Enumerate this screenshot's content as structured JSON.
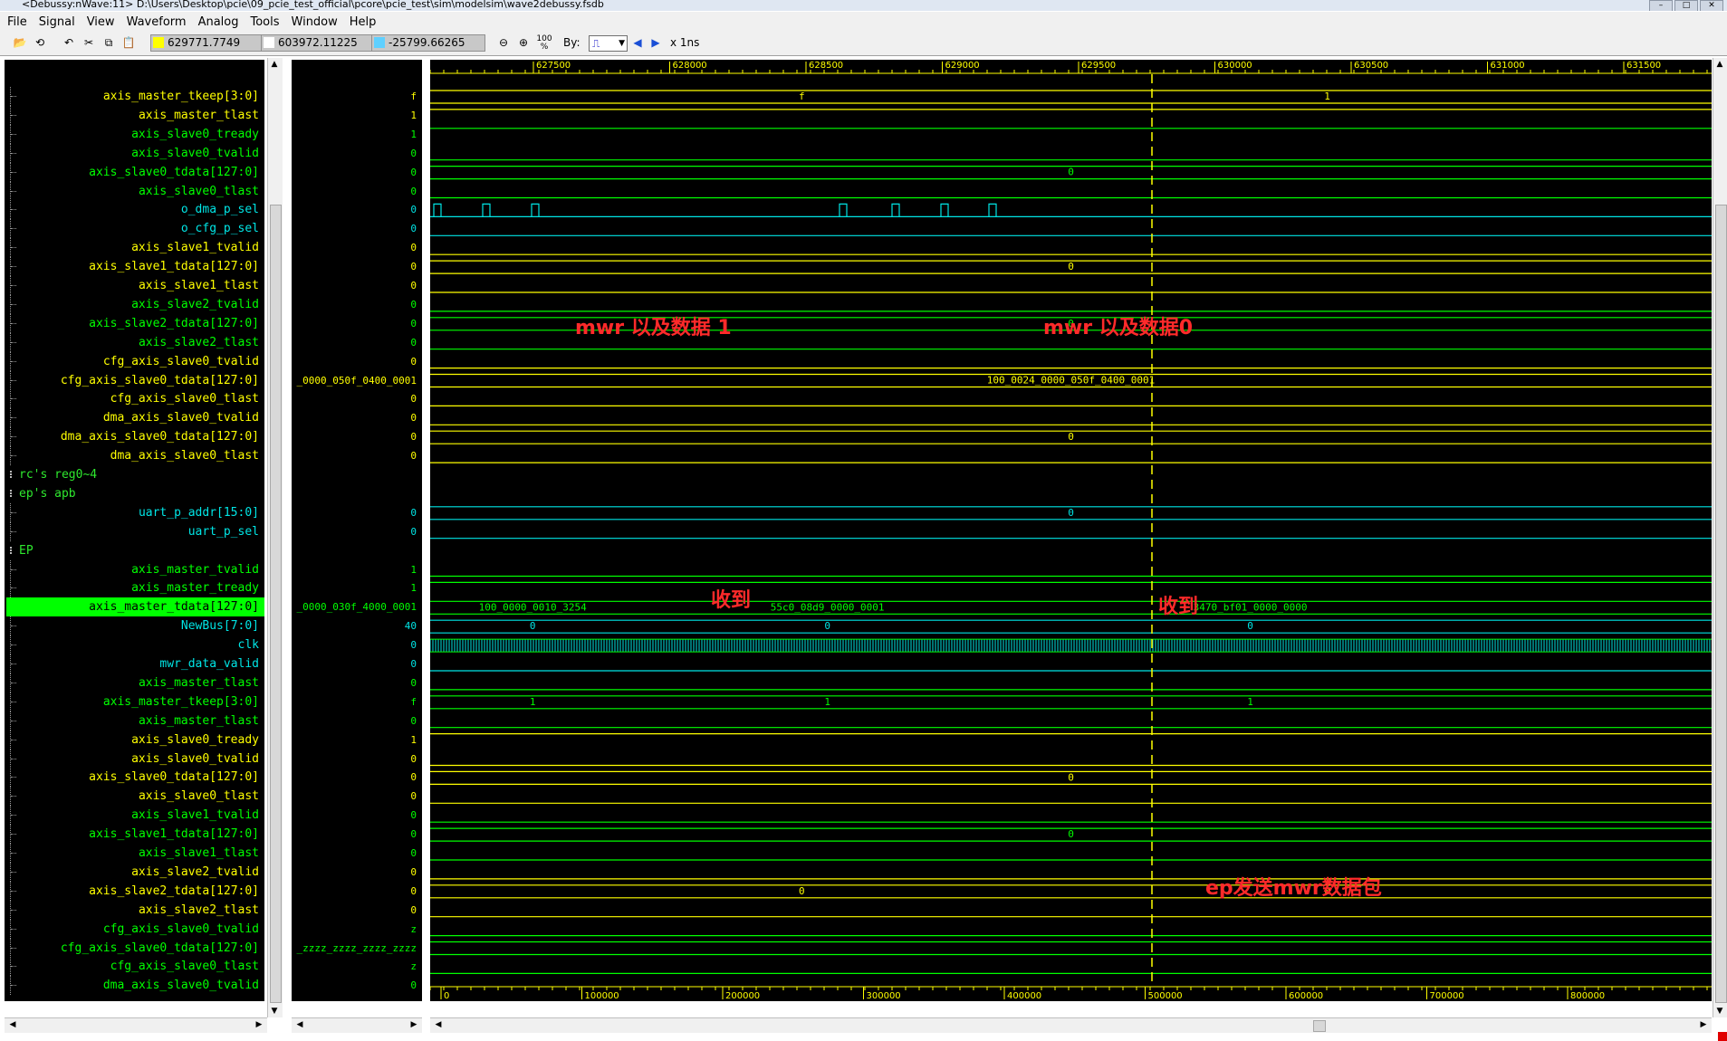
{
  "window": {
    "title": "<Debussy:nWave:11> D:\\Users\\Desktop\\pcie\\09_pcie_test_official\\pcore\\pcie_test\\sim\\modelsim\\wave2debussy.fsdb"
  },
  "menu": [
    "File",
    "Signal",
    "View",
    "Waveform",
    "Analog",
    "Tools",
    "Window",
    "Help"
  ],
  "toolbar": {
    "cursor_time": "629771.7749",
    "marker_time": "603972.11225",
    "delta_time": "-25799.66265",
    "zoom_full_label": "100 %",
    "by_label": "By:",
    "time_unit": "x 1ns"
  },
  "colors": {
    "yellow": "#ffff00",
    "green": "#00ff00",
    "cyan": "#00e5e5",
    "selected_bg": "#00ff00",
    "annotation": "#ff2a2a",
    "cursor": "#ffff00"
  },
  "timeline": {
    "top_ticks": [
      "627500",
      "628000",
      "628500",
      "629000",
      "629500",
      "630000",
      "630500",
      "631000",
      "631500"
    ],
    "bottom_ticks": [
      "0",
      "100000",
      "200000",
      "300000",
      "400000",
      "500000",
      "600000",
      "700000",
      "800000"
    ]
  },
  "rows": [
    {
      "name": "axis_master_tkeep[3:0]",
      "color": "yellow",
      "value": "f",
      "wave": "bus",
      "label": "f",
      "label2": "1"
    },
    {
      "name": "axis_master_tlast",
      "color": "yellow",
      "value": "1",
      "wave": "bit_high"
    },
    {
      "name": "axis_slave0_tready",
      "color": "green",
      "value": "1",
      "wave": "bit_high_g"
    },
    {
      "name": "axis_slave0_tvalid",
      "color": "green",
      "value": "0",
      "wave": "bit_low"
    },
    {
      "name": "axis_slave0_tdata[127:0]",
      "color": "green",
      "value": "0",
      "wave": "bus",
      "label": "0"
    },
    {
      "name": "axis_slave0_tlast",
      "color": "green",
      "value": "0",
      "wave": "bit_low"
    },
    {
      "name": "o_dma_p_sel",
      "color": "cyan",
      "value": "0",
      "wave": "pulses"
    },
    {
      "name": "o_cfg_p_sel",
      "color": "cyan",
      "value": "0",
      "wave": "bit_low"
    },
    {
      "name": "axis_slave1_tvalid",
      "color": "yellow",
      "value": "0",
      "wave": "bit_low"
    },
    {
      "name": "axis_slave1_tdata[127:0]",
      "color": "yellow",
      "value": "0",
      "wave": "bus",
      "label": "0"
    },
    {
      "name": "axis_slave1_tlast",
      "color": "yellow",
      "value": "0",
      "wave": "bit_low"
    },
    {
      "name": "axis_slave2_tvalid",
      "color": "green",
      "value": "0",
      "wave": "bit_low"
    },
    {
      "name": "axis_slave2_tdata[127:0]",
      "color": "green",
      "value": "0",
      "wave": "bus",
      "label": "0"
    },
    {
      "name": "axis_slave2_tlast",
      "color": "green",
      "value": "0",
      "wave": "bit_low"
    },
    {
      "name": "cfg_axis_slave0_tvalid",
      "color": "yellow",
      "value": "0",
      "wave": "bit_low"
    },
    {
      "name": "cfg_axis_slave0_tdata[127:0]",
      "color": "yellow",
      "value": "_0000_050f_0400_0001",
      "wave": "bus",
      "label": "100_0024_0000_050f_0400_0001"
    },
    {
      "name": "cfg_axis_slave0_tlast",
      "color": "yellow",
      "value": "0",
      "wave": "bit_low"
    },
    {
      "name": "dma_axis_slave0_tvalid",
      "color": "yellow",
      "value": "0",
      "wave": "bit_low"
    },
    {
      "name": "dma_axis_slave0_tdata[127:0]",
      "color": "yellow",
      "value": "0",
      "wave": "bus",
      "label": "0"
    },
    {
      "name": "dma_axis_slave0_tlast",
      "color": "yellow",
      "value": "0",
      "wave": "bit_low"
    },
    {
      "group": "rc's reg0~4"
    },
    {
      "group": "ep's apb"
    },
    {
      "name": "uart_p_addr[15:0]",
      "color": "cyan",
      "value": "0",
      "wave": "bus",
      "label": "0"
    },
    {
      "name": "uart_p_sel",
      "color": "cyan",
      "value": "0",
      "wave": "bit_low"
    },
    {
      "group": "EP"
    },
    {
      "name": "axis_master_tvalid",
      "color": "green",
      "value": "1",
      "wave": "bit_low"
    },
    {
      "name": "axis_master_tready",
      "color": "green",
      "value": "1",
      "wave": "bit_high_g"
    },
    {
      "name": "axis_master_tdata[127:0]",
      "color": "green",
      "value": "_0000_030f_4000_0001",
      "selected": true,
      "wave": "bus",
      "label": "100_0000_0010_3254",
      "label2": "55c0_08d9_0000_0001",
      "label3": "3470_bf01_0000_0000"
    },
    {
      "name": "NewBus[7:0]",
      "color": "cyan",
      "value": "40",
      "wave": "bus",
      "label": "0",
      "label2": "0",
      "label3": "0"
    },
    {
      "name": "clk",
      "color": "cyan",
      "value": "0",
      "wave": "clock"
    },
    {
      "name": "mwr_data_valid",
      "color": "cyan",
      "value": "0",
      "wave": "bit_low"
    },
    {
      "name": "axis_master_tlast",
      "color": "green",
      "value": "0",
      "wave": "bit_low"
    },
    {
      "name": "axis_master_tkeep[3:0]",
      "color": "green",
      "value": "f",
      "wave": "bus",
      "label": "1",
      "label2": "1",
      "label3": "1"
    },
    {
      "name": "axis_master_tlast",
      "color": "green",
      "value": "0",
      "wave": "bit_low"
    },
    {
      "name": "axis_slave0_tready",
      "color": "yellow",
      "value": "1",
      "wave": "bit_high"
    },
    {
      "name": "axis_slave0_tvalid",
      "color": "yellow",
      "value": "0",
      "wave": "bit_low"
    },
    {
      "name": "axis_slave0_tdata[127:0]",
      "color": "yellow",
      "value": "0",
      "wave": "bus",
      "label": "0"
    },
    {
      "name": "axis_slave0_tlast",
      "color": "yellow",
      "value": "0",
      "wave": "bit_low"
    },
    {
      "name": "axis_slave1_tvalid",
      "color": "green",
      "value": "0",
      "wave": "bit_low"
    },
    {
      "name": "axis_slave1_tdata[127:0]",
      "color": "green",
      "value": "0",
      "wave": "bus",
      "label": "0"
    },
    {
      "name": "axis_slave1_tlast",
      "color": "green",
      "value": "0",
      "wave": "bit_low"
    },
    {
      "name": "axis_slave2_tvalid",
      "color": "yellow",
      "value": "0",
      "wave": "bit_low"
    },
    {
      "name": "axis_slave2_tdata[127:0]",
      "color": "yellow",
      "value": "0",
      "wave": "bus",
      "label": "0",
      "label2": "0"
    },
    {
      "name": "axis_slave2_tlast",
      "color": "yellow",
      "value": "0",
      "wave": "bit_low"
    },
    {
      "name": "cfg_axis_slave0_tvalid",
      "color": "green",
      "value": "z",
      "wave": "bit_low"
    },
    {
      "name": "cfg_axis_slave0_tdata[127:0]",
      "color": "green",
      "value": "_zzzz_zzzz_zzzz_zzzz",
      "wave": "bus"
    },
    {
      "name": "cfg_axis_slave0_tlast",
      "color": "green",
      "value": "z",
      "wave": "bit_low"
    },
    {
      "name": "dma_axis_slave0_tvalid",
      "color": "green",
      "value": "0",
      "wave": "bit_low"
    }
  ],
  "annotations": [
    {
      "text": "mwr 以及数据 1"
    },
    {
      "text": "mwr 以及数据0"
    },
    {
      "text": "收到"
    },
    {
      "text": "收到"
    },
    {
      "text": "ep发送mwr数据包"
    }
  ]
}
